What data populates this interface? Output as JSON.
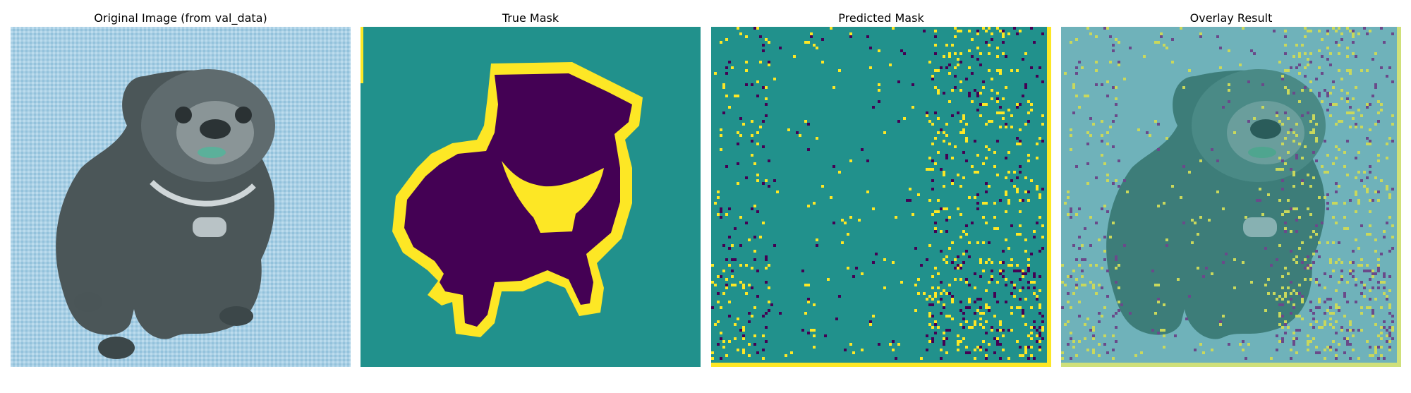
{
  "panels": [
    {
      "title": "Original Image (from val_data)"
    },
    {
      "title": "True Mask"
    },
    {
      "title": "Predicted Mask"
    },
    {
      "title": "Overlay Result"
    }
  ],
  "colors": {
    "background_teal": "#21918c",
    "mask_purple": "#440154",
    "mask_yellow": "#fde725",
    "photo_sky": "#a8d0e6",
    "dog_dark": "#3f4a4c",
    "overlay_teal": "#6fb2ba"
  }
}
